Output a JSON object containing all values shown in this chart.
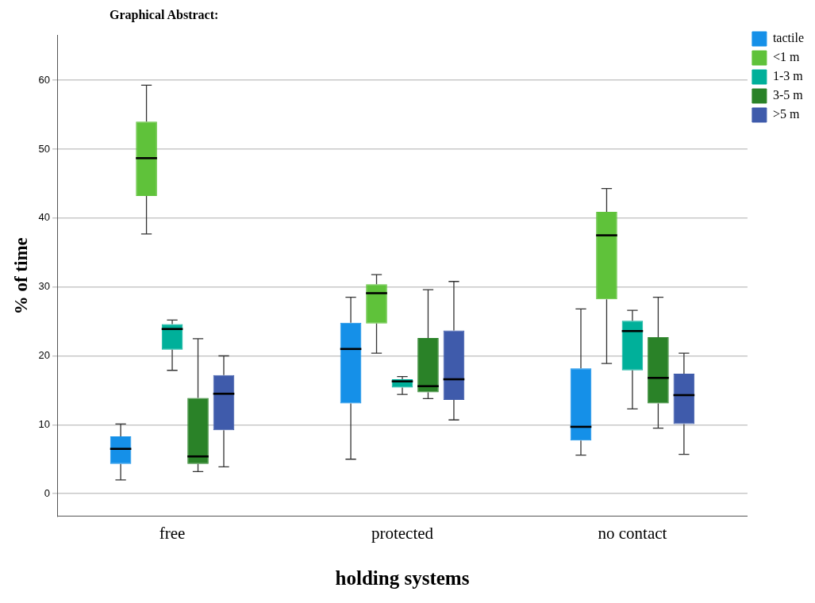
{
  "chart_data": {
    "type": "box",
    "title": "Graphical Abstract:",
    "xlabel": "holding systems",
    "ylabel": "% of time",
    "categories": [
      "free",
      "protected",
      "no contact"
    ],
    "ylim": [
      -3.3,
      66.5
    ],
    "yticks": [
      0,
      10,
      20,
      30,
      40,
      50,
      60
    ],
    "grid": "y",
    "legend": "top right",
    "series": [
      {
        "name": "tactile",
        "color": "#1590e8",
        "boxes": [
          {
            "low": 2.0,
            "q1": 4.3,
            "median": 6.5,
            "q3": 8.3,
            "high": 10.1
          },
          {
            "low": 5.0,
            "q1": 13.1,
            "median": 21.0,
            "q3": 24.8,
            "high": 28.5
          },
          {
            "low": 5.6,
            "q1": 7.7,
            "median": 9.7,
            "q3": 18.2,
            "high": 26.8
          }
        ]
      },
      {
        "name": "<1 m",
        "color": "#5fc23a",
        "boxes": [
          {
            "low": 37.7,
            "q1": 43.2,
            "median": 48.7,
            "q3": 54.0,
            "high": 59.3
          },
          {
            "low": 20.4,
            "q1": 24.7,
            "median": 29.1,
            "q3": 30.4,
            "high": 31.8
          },
          {
            "low": 18.9,
            "q1": 28.2,
            "median": 37.5,
            "q3": 40.9,
            "high": 44.3
          }
        ]
      },
      {
        "name": "1-3 m",
        "color": "#00b09a",
        "boxes": [
          {
            "low": 17.9,
            "q1": 20.9,
            "median": 23.9,
            "q3": 24.6,
            "high": 25.2
          },
          {
            "low": 14.4,
            "q1": 15.4,
            "median": 16.3,
            "q3": 16.6,
            "high": 17.0
          },
          {
            "low": 12.3,
            "q1": 17.9,
            "median": 23.6,
            "q3": 25.1,
            "high": 26.6
          }
        ]
      },
      {
        "name": "3-5 m",
        "color": "#2a8228",
        "boxes": [
          {
            "low": 3.2,
            "q1": 4.3,
            "median": 5.4,
            "q3": 13.9,
            "high": 22.5
          },
          {
            "low": 13.8,
            "q1": 14.7,
            "median": 15.6,
            "q3": 22.6,
            "high": 29.6
          },
          {
            "low": 9.5,
            "q1": 13.1,
            "median": 16.8,
            "q3": 22.7,
            "high": 28.5
          }
        ]
      },
      {
        "name": ">5 m",
        "color": "#3f5bab",
        "boxes": [
          {
            "low": 3.9,
            "q1": 9.2,
            "median": 14.5,
            "q3": 17.2,
            "high": 20.0
          },
          {
            "low": 10.7,
            "q1": 13.6,
            "median": 16.6,
            "q3": 23.7,
            "high": 30.8
          },
          {
            "low": 5.7,
            "q1": 10.1,
            "median": 14.3,
            "q3": 17.4,
            "high": 20.4
          }
        ]
      }
    ]
  }
}
